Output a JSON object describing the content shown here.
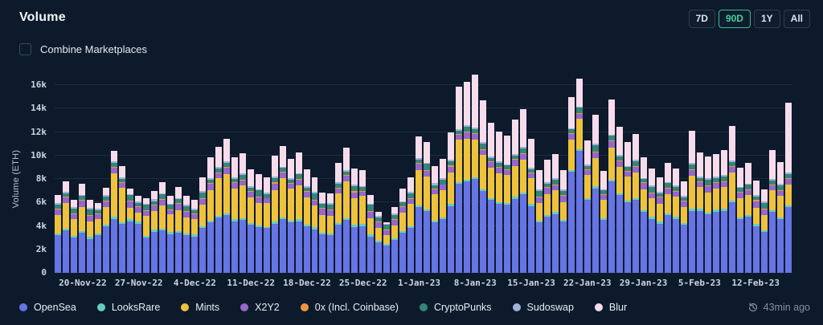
{
  "header": {
    "title": "Volume",
    "ranges": [
      {
        "label": "7D",
        "active": false
      },
      {
        "label": "90D",
        "active": true
      },
      {
        "label": "1Y",
        "active": false
      },
      {
        "label": "All",
        "active": false
      }
    ]
  },
  "controls": {
    "combine_label": "Combine Marketplaces",
    "combine_checked": false
  },
  "footer": {
    "updated": "43min ago"
  },
  "colors": {
    "background": "#0d1a2b",
    "grid": "#1c2c44",
    "axis_text": "#ccd5e0",
    "accent_green": "#41cf9e",
    "muted_text": "#8290a3"
  },
  "chart_data": {
    "type": "bar",
    "stacked": true,
    "title": "Volume",
    "ylabel": "Volume (ETH)",
    "xlabel": "",
    "grid": true,
    "legend_position": "bottom",
    "ylim": [
      0,
      16000
    ],
    "yticks": [
      {
        "value": 0,
        "label": "0"
      },
      {
        "value": 2000,
        "label": "2k"
      },
      {
        "value": 4000,
        "label": "4k"
      },
      {
        "value": 6000,
        "label": "6k"
      },
      {
        "value": 8000,
        "label": "8k"
      },
      {
        "value": 10000,
        "label": "10k"
      },
      {
        "value": 12000,
        "label": "12k"
      },
      {
        "value": 14000,
        "label": "14k"
      },
      {
        "value": 16000,
        "label": "16k"
      }
    ],
    "xticks": [
      {
        "index": 3,
        "label": "20-Nov-22"
      },
      {
        "index": 10,
        "label": "27-Nov-22"
      },
      {
        "index": 17,
        "label": "4-Dec-22"
      },
      {
        "index": 24,
        "label": "11-Dec-22"
      },
      {
        "index": 31,
        "label": "18-Dec-22"
      },
      {
        "index": 38,
        "label": "25-Dec-22"
      },
      {
        "index": 45,
        "label": "1-Jan-23"
      },
      {
        "index": 52,
        "label": "8-Jan-23"
      },
      {
        "index": 59,
        "label": "15-Jan-23"
      },
      {
        "index": 66,
        "label": "22-Jan-23"
      },
      {
        "index": 73,
        "label": "29-Jan-23"
      },
      {
        "index": 80,
        "label": "5-Feb-23"
      },
      {
        "index": 87,
        "label": "12-Feb-23"
      }
    ],
    "series": [
      {
        "name": "OpenSea",
        "color": "#6674e4",
        "values": [
          3200,
          3600,
          3000,
          3400,
          2900,
          3200,
          4000,
          4600,
          4200,
          4400,
          4200,
          3000,
          3500,
          3600,
          3300,
          3400,
          3200,
          3100,
          3800,
          4300,
          4700,
          4900,
          4400,
          4500,
          4100,
          3900,
          3800,
          4200,
          4600,
          4300,
          4400,
          4000,
          3700,
          3300,
          3200,
          4100,
          4500,
          3900,
          4000,
          3100,
          2600,
          2300,
          2800,
          3400,
          3800,
          5600,
          5300,
          4300,
          4600,
          5700,
          7600,
          7800,
          8000,
          7000,
          6200,
          5900,
          5800,
          6300,
          6700,
          5700,
          4300,
          4800,
          5000,
          4400,
          8600,
          10400,
          6200,
          7200,
          4500,
          7800,
          6600,
          6000,
          6200,
          5200,
          4600,
          4200,
          4900,
          4600,
          4100,
          5300,
          5300,
          5000,
          5200,
          5300,
          6000,
          4600,
          4800,
          4000,
          3500,
          5200,
          4600,
          5600
        ]
      },
      {
        "name": "LooksRare",
        "color": "#62cfc3",
        "values": [
          150,
          130,
          170,
          140,
          160,
          150,
          130,
          170,
          140,
          160,
          150,
          130,
          170,
          140,
          160,
          150,
          130,
          170,
          140,
          160,
          150,
          130,
          170,
          140,
          160,
          150,
          130,
          170,
          140,
          160,
          150,
          130,
          170,
          140,
          160,
          150,
          130,
          170,
          140,
          160,
          150,
          130,
          170,
          140,
          160,
          150,
          130,
          170,
          140,
          160,
          150,
          130,
          170,
          140,
          160,
          150,
          130,
          170,
          140,
          160,
          150,
          130,
          170,
          140,
          160,
          150,
          130,
          170,
          140,
          160,
          150,
          130,
          170,
          140,
          160,
          150,
          130,
          170,
          140,
          160,
          150,
          130,
          170,
          140,
          160,
          150,
          130,
          170,
          140,
          160,
          150,
          130
        ]
      },
      {
        "name": "Mints",
        "color": "#eec23d",
        "values": [
          1600,
          2200,
          1400,
          2100,
          1300,
          1200,
          1500,
          3700,
          2900,
          1000,
          800,
          1700,
          1600,
          2000,
          1500,
          1800,
          1400,
          1300,
          1900,
          2600,
          3200,
          3400,
          2600,
          2800,
          2200,
          1900,
          2000,
          2700,
          3300,
          2700,
          2900,
          2300,
          1900,
          1500,
          1500,
          2500,
          3200,
          2300,
          2400,
          1400,
          1100,
          800,
          1100,
          1600,
          1900,
          3000,
          2800,
          2200,
          2300,
          2700,
          3600,
          3500,
          3200,
          2900,
          2600,
          2400,
          2400,
          2600,
          2800,
          2200,
          1500,
          1800,
          1900,
          1500,
          2600,
          2600,
          2000,
          2400,
          1600,
          2700,
          2300,
          2100,
          2200,
          1800,
          1600,
          1500,
          1700,
          1700,
          1400,
          2800,
          1900,
          1700,
          1800,
          1900,
          2400,
          1600,
          1700,
          1400,
          1300,
          1700,
          1800,
          1800
        ]
      },
      {
        "name": "X2Y2",
        "color": "#9567cb",
        "values": [
          450,
          500,
          400,
          550,
          480,
          420,
          450,
          500,
          400,
          550,
          480,
          420,
          450,
          500,
          400,
          550,
          480,
          420,
          450,
          500,
          400,
          550,
          480,
          420,
          450,
          500,
          400,
          550,
          480,
          420,
          450,
          500,
          400,
          550,
          480,
          420,
          450,
          500,
          400,
          550,
          480,
          420,
          450,
          500,
          400,
          550,
          480,
          420,
          450,
          500,
          400,
          550,
          480,
          420,
          450,
          500,
          400,
          550,
          480,
          420,
          450,
          500,
          400,
          550,
          480,
          420,
          450,
          500,
          400,
          550,
          480,
          420,
          450,
          500,
          400,
          550,
          480,
          420,
          450,
          500,
          400,
          550,
          480,
          420,
          450,
          500,
          400,
          550,
          480,
          420,
          450,
          500
        ]
      },
      {
        "name": "0x (Incl. Coinbase)",
        "color": "#ef9440",
        "values": [
          70,
          60,
          80,
          65,
          75,
          70,
          60,
          80,
          65,
          75,
          70,
          60,
          80,
          65,
          75,
          70,
          60,
          80,
          65,
          75,
          70,
          60,
          80,
          65,
          75,
          70,
          60,
          80,
          65,
          75,
          70,
          60,
          80,
          65,
          75,
          70,
          60,
          80,
          65,
          75,
          70,
          60,
          80,
          65,
          75,
          70,
          60,
          80,
          65,
          75,
          70,
          60,
          80,
          65,
          75,
          70,
          60,
          80,
          65,
          75,
          70,
          60,
          80,
          65,
          75,
          70,
          60,
          80,
          65,
          75,
          70,
          60,
          80,
          65,
          75,
          70,
          60,
          80,
          65,
          75,
          70,
          60,
          80,
          65,
          75,
          70,
          60,
          80,
          65,
          75,
          70,
          60
        ]
      },
      {
        "name": "CryptoPunks",
        "color": "#338579",
        "values": [
          350,
          300,
          420,
          280,
          500,
          320,
          380,
          350,
          300,
          420,
          280,
          500,
          320,
          380,
          350,
          300,
          420,
          280,
          500,
          320,
          380,
          350,
          300,
          420,
          280,
          500,
          320,
          380,
          350,
          300,
          420,
          280,
          500,
          320,
          380,
          350,
          300,
          420,
          280,
          500,
          320,
          380,
          350,
          300,
          420,
          280,
          500,
          320,
          380,
          350,
          300,
          420,
          280,
          500,
          320,
          380,
          350,
          300,
          420,
          280,
          500,
          320,
          380,
          350,
          300,
          420,
          280,
          500,
          320,
          380,
          350,
          300,
          420,
          280,
          500,
          320,
          380,
          350,
          300,
          420,
          280,
          500,
          320,
          380,
          350,
          300,
          420,
          280,
          500,
          320,
          380,
          350
        ]
      },
      {
        "name": "Sudoswap",
        "color": "#9fb3d6",
        "values": [
          120,
          100,
          140,
          110,
          130,
          120,
          100,
          140,
          110,
          130,
          120,
          100,
          140,
          110,
          130,
          120,
          100,
          140,
          110,
          130,
          120,
          100,
          140,
          110,
          130,
          120,
          100,
          140,
          110,
          130,
          120,
          100,
          140,
          110,
          130,
          120,
          100,
          140,
          110,
          130,
          120,
          100,
          140,
          110,
          130,
          120,
          100,
          140,
          110,
          130,
          120,
          100,
          140,
          110,
          130,
          120,
          100,
          140,
          110,
          130,
          120,
          100,
          140,
          110,
          130,
          120,
          100,
          140,
          110,
          130,
          120,
          100,
          140,
          110,
          130,
          120,
          100,
          140,
          110,
          130,
          120,
          100,
          140,
          110,
          130,
          120,
          100,
          140,
          110,
          130,
          120,
          100
        ]
      },
      {
        "name": "Blur",
        "color": "#f7dcec",
        "values": [
          700,
          900,
          600,
          950,
          650,
          450,
          650,
          850,
          950,
          450,
          450,
          450,
          750,
          950,
          650,
          950,
          750,
          750,
          1150,
          1750,
          1750,
          1950,
          1650,
          1750,
          1450,
          1250,
          1350,
          1750,
          1750,
          1650,
          1750,
          1450,
          1250,
          850,
          850,
          1650,
          1950,
          1350,
          1350,
          750,
          350,
          150,
          550,
          1050,
          1250,
          1850,
          1750,
          1450,
          1650,
          2350,
          3650,
          3750,
          4550,
          3550,
          2850,
          2550,
          2450,
          2950,
          3250,
          2450,
          1650,
          1950,
          2050,
          1650,
          2650,
          2350,
          2050,
          2450,
          1550,
          2950,
          2350,
          2050,
          2150,
          1750,
          1450,
          1250,
          1650,
          1450,
          1250,
          2750,
          2050,
          1850,
          1950,
          2150,
          2950,
          1650,
          1750,
          1250,
          1050,
          2450,
          1850,
          5950
        ]
      }
    ]
  }
}
